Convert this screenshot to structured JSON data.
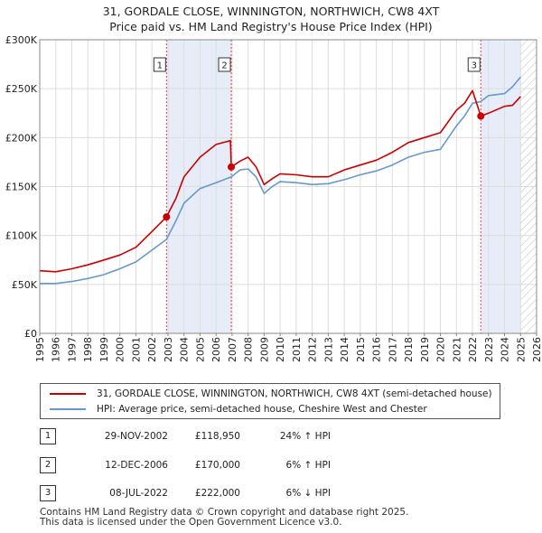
{
  "header": {
    "title_line1": "31, GORDALE CLOSE, WINNINGTON, NORTHWICH, CW8 4XT",
    "title_line2": "Price paid vs. HM Land Registry's House Price Index (HPI)"
  },
  "chart_data": {
    "type": "line",
    "xlim": [
      1995,
      2026
    ],
    "ylim": [
      0,
      300000
    ],
    "x_ticks": [
      "1995",
      "1996",
      "1997",
      "1998",
      "1999",
      "2000",
      "2001",
      "2002",
      "2003",
      "2004",
      "2005",
      "2006",
      "2007",
      "2008",
      "2009",
      "2010",
      "2011",
      "2012",
      "2013",
      "2014",
      "2015",
      "2016",
      "2017",
      "2018",
      "2019",
      "2020",
      "2021",
      "2022",
      "2023",
      "2024",
      "2025",
      "2026"
    ],
    "y_ticks": [
      {
        "value": 0,
        "label": "£0"
      },
      {
        "value": 50000,
        "label": "£50K"
      },
      {
        "value": 100000,
        "label": "£100K"
      },
      {
        "value": 150000,
        "label": "£150K"
      },
      {
        "value": 200000,
        "label": "£200K"
      },
      {
        "value": 250000,
        "label": "£250K"
      },
      {
        "value": 300000,
        "label": "£300K"
      }
    ],
    "grid": true,
    "shaded_periods": [
      [
        2002.91,
        2006.95
      ],
      [
        2022.52,
        2025.0
      ]
    ],
    "future_hatch_from": 2025.0,
    "series": [
      {
        "name": "31, GORDALE CLOSE, WINNINGTON, NORTHWICH, CW8 4XT (semi-detached house)",
        "color": "#cc0000",
        "x": [
          1995,
          1996,
          1997,
          1998,
          1999,
          2000,
          2001,
          2002,
          2002.91,
          2003.5,
          2004,
          2005,
          2006,
          2006.9,
          2006.95,
          2007.5,
          2008,
          2008.5,
          2009,
          2009.5,
          2010,
          2011,
          2012,
          2013,
          2014,
          2015,
          2016,
          2017,
          2018,
          2019,
          2020,
          2021,
          2021.5,
          2022,
          2022.52,
          2023,
          2024,
          2024.5,
          2025
        ],
        "y": [
          64000,
          63000,
          66000,
          70000,
          75000,
          80000,
          88000,
          104000,
          118950,
          138000,
          160000,
          180000,
          193000,
          197000,
          170000,
          176000,
          180000,
          170000,
          152000,
          158000,
          163000,
          162000,
          160000,
          160000,
          167000,
          172000,
          177000,
          185000,
          195000,
          200000,
          205000,
          228000,
          235000,
          248000,
          222000,
          225000,
          232000,
          233000,
          242000
        ]
      },
      {
        "name": "HPI: Average price, semi-detached house, Cheshire West and Chester",
        "color": "#6699cc",
        "x": [
          1995,
          1996,
          1997,
          1998,
          1999,
          2000,
          2001,
          2002,
          2002.91,
          2003.5,
          2004,
          2005,
          2006,
          2006.95,
          2007.5,
          2008,
          2008.5,
          2009,
          2009.5,
          2010,
          2011,
          2012,
          2013,
          2014,
          2015,
          2016,
          2017,
          2018,
          2019,
          2020,
          2021,
          2021.5,
          2022,
          2022.52,
          2023,
          2024,
          2024.5,
          2025
        ],
        "y": [
          51000,
          51000,
          53000,
          56000,
          60000,
          66000,
          73000,
          85000,
          96000,
          115000,
          133000,
          148000,
          154000,
          160000,
          167000,
          168000,
          160000,
          143000,
          150000,
          155000,
          154000,
          152000,
          153000,
          157000,
          162000,
          166000,
          172000,
          180000,
          185000,
          188000,
          212000,
          222000,
          235000,
          237000,
          243000,
          245000,
          252000,
          262000
        ]
      }
    ],
    "sale_markers": [
      {
        "label": "1",
        "x": 2002.91,
        "y": 118950
      },
      {
        "label": "2",
        "x": 2006.95,
        "y": 170000
      },
      {
        "label": "3",
        "x": 2022.52,
        "y": 222000
      }
    ]
  },
  "legend": {
    "property_label": "31, GORDALE CLOSE, WINNINGTON, NORTHWICH, CW8 4XT (semi-detached house)",
    "hpi_label": "HPI: Average price, semi-detached house, Cheshire West and Chester"
  },
  "sales": [
    {
      "num": "1",
      "date": "29-NOV-2002",
      "price": "£118,950",
      "hpi": "24% ↑ HPI"
    },
    {
      "num": "2",
      "date": "12-DEC-2006",
      "price": "£170,000",
      "hpi": "6% ↑ HPI"
    },
    {
      "num": "3",
      "date": "08-JUL-2022",
      "price": "£222,000",
      "hpi": "6% ↓ HPI"
    }
  ],
  "footer": {
    "line1": "Contains HM Land Registry data © Crown copyright and database right 2025.",
    "line2": "This data is licensed under the Open Government Licence v3.0."
  }
}
